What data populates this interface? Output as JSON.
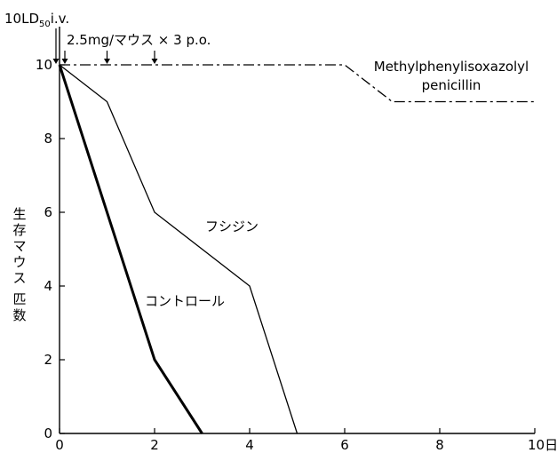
{
  "chart_data": {
    "type": "line",
    "title": "",
    "xlabel": "",
    "ylabel": "生存マウス 匹数",
    "x_unit": "日",
    "xlim": [
      0,
      10
    ],
    "ylim": [
      0,
      10
    ],
    "x_ticks": [
      0,
      2,
      4,
      6,
      8,
      10
    ],
    "y_ticks": [
      0,
      2,
      4,
      6,
      8,
      10
    ],
    "x_tick_labels": [
      "0",
      "2",
      "4",
      "6",
      "8",
      "10日"
    ],
    "y_tick_labels": [
      "0",
      "2",
      "4",
      "6",
      "8",
      "10"
    ],
    "grid": false,
    "legend": "none (series labeled directly on chart)",
    "series": [
      {
        "name": "Methylphenylisoxazolyl penicillin",
        "label_lines": [
          "Methylphenylisoxazolyl",
          "penicillin"
        ],
        "style": "dash-dot",
        "points": [
          [
            0,
            10
          ],
          [
            6,
            10
          ],
          [
            7,
            9
          ],
          [
            10,
            9
          ]
        ]
      },
      {
        "name": "フシジン",
        "label_lines": [
          "フシジン"
        ],
        "style": "thin solid",
        "points": [
          [
            0,
            10
          ],
          [
            1,
            9
          ],
          [
            2,
            6
          ],
          [
            4,
            4
          ],
          [
            5,
            0
          ]
        ]
      },
      {
        "name": "コントロール",
        "label_lines": [
          "コントロール"
        ],
        "style": "thick solid",
        "points": [
          [
            0,
            10
          ],
          [
            2,
            2
          ],
          [
            3,
            0
          ]
        ]
      }
    ],
    "annotations": {
      "infection_label": "10LD",
      "infection_subscript": "50",
      "infection_route": "i.v.",
      "dosing_label": "2.5mg/マウス × 3 p.o.",
      "infection_day": 0,
      "dosing_days": [
        0,
        1,
        2
      ]
    }
  }
}
